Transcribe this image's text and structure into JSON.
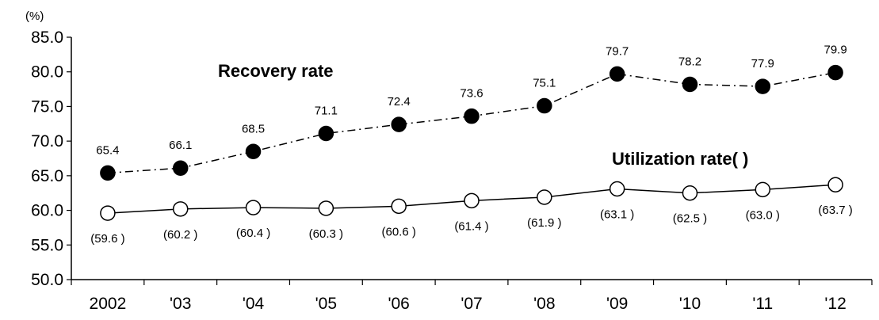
{
  "chart_data": {
    "type": "line",
    "ylabel": "(%)",
    "ylim": [
      50.0,
      85.0
    ],
    "yticks": [
      "50.0",
      "55.0",
      "60.0",
      "65.0",
      "70.0",
      "75.0",
      "80.0",
      "85.0"
    ],
    "categories": [
      "2002",
      "'03",
      "'04",
      "'05",
      "'06",
      "'07",
      "'08",
      "'09",
      "'10",
      "'11",
      "'12"
    ],
    "series": [
      {
        "name": "Recovery rate",
        "marker": "filled-circle",
        "line_style": "dash-dot",
        "values": [
          65.4,
          66.1,
          68.5,
          71.1,
          72.4,
          73.6,
          75.1,
          79.7,
          78.2,
          77.9,
          79.9
        ],
        "labels": [
          "65.4",
          "66.1",
          "68.5",
          "71.1",
          "72.4",
          "73.6",
          "75.1",
          "79.7",
          "78.2",
          "77.9",
          "79.9"
        ]
      },
      {
        "name": "Utilization rate( )",
        "marker": "open-circle",
        "line_style": "solid",
        "values": [
          59.6,
          60.2,
          60.4,
          60.3,
          60.6,
          61.4,
          61.9,
          63.1,
          62.5,
          63.0,
          63.7
        ],
        "labels": [
          "(59.6 )",
          "(60.2 )",
          "(60.4 )",
          "(60.3 )",
          "(60.6 )",
          "(61.4 )",
          "(61.9 )",
          "(63.1 )",
          "(62.5 )",
          "(63.0 )",
          "(63.7 )"
        ]
      }
    ],
    "grid": false,
    "legend": "none",
    "colors": {
      "line": "#000000",
      "recovery_marker": "#000000",
      "utilization_marker": "#ffffff"
    }
  }
}
